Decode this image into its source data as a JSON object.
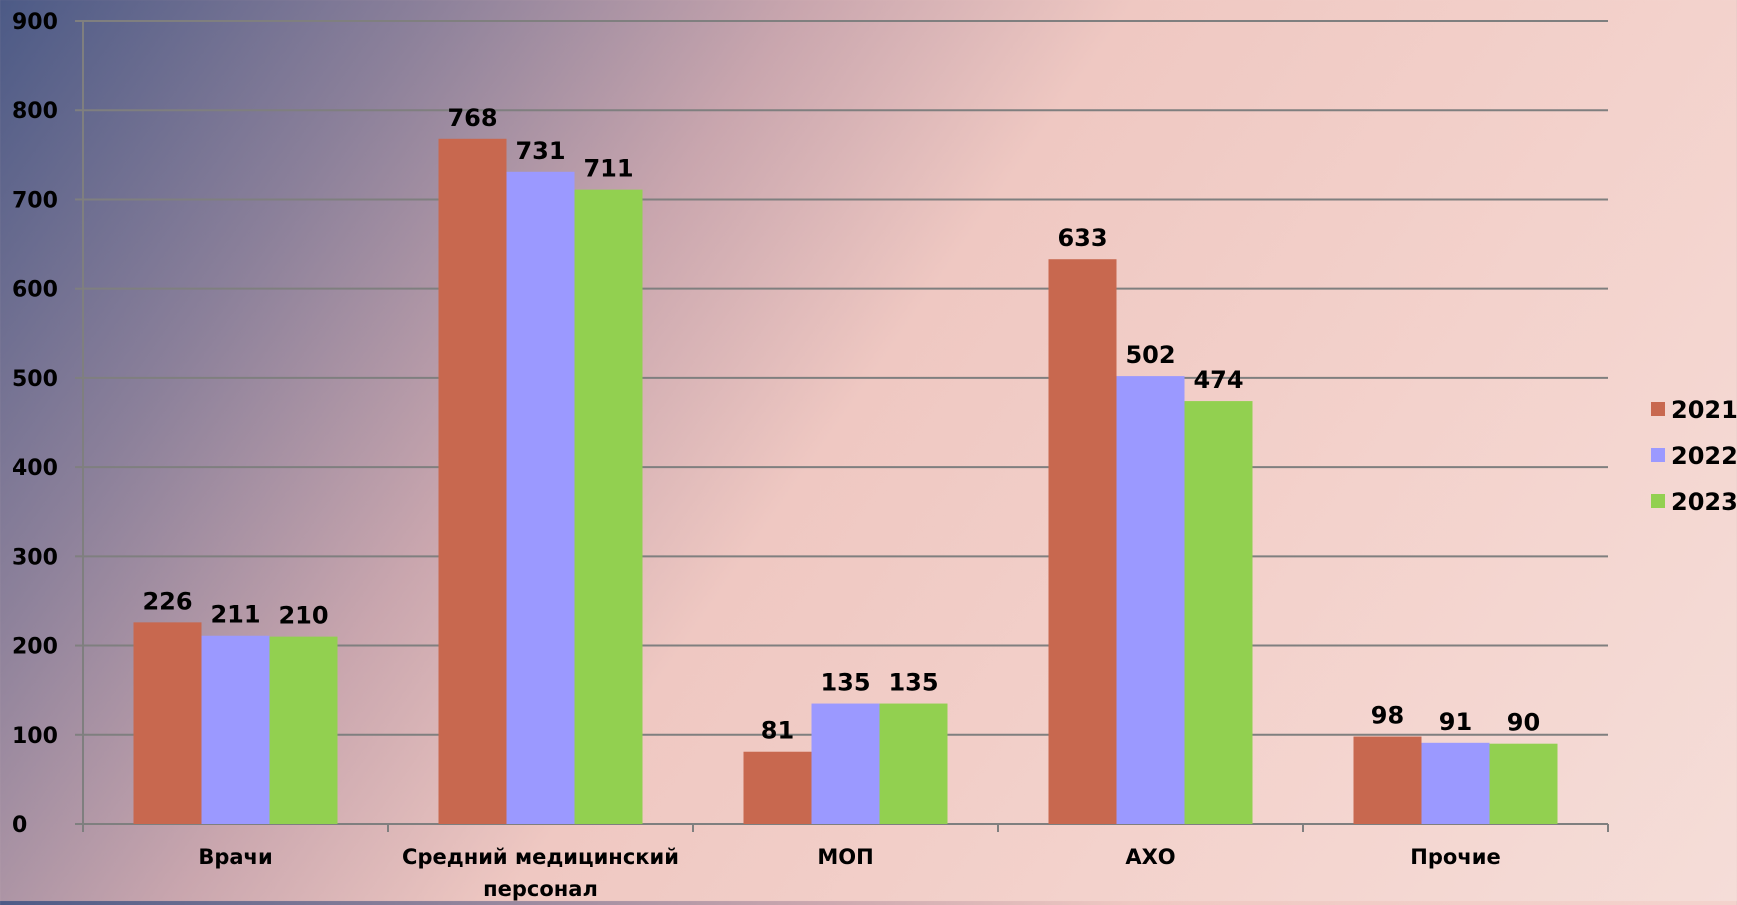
{
  "chart_data": {
    "type": "bar",
    "categories": [
      "Врачи",
      "Средний медицинский персонал",
      "МОП",
      "АХО",
      "Прочие"
    ],
    "category_lines": [
      [
        "Врачи"
      ],
      [
        "Средний медицинский",
        "персонал"
      ],
      [
        "МОП"
      ],
      [
        "АХО"
      ],
      [
        "Прочие"
      ]
    ],
    "series": [
      {
        "name": "2021",
        "color": "#c8684f",
        "values": [
          226,
          768,
          81,
          633,
          98
        ]
      },
      {
        "name": "2022",
        "color": "#9b99ff",
        "values": [
          211,
          731,
          135,
          502,
          91
        ]
      },
      {
        "name": "2023",
        "color": "#92d050",
        "values": [
          210,
          711,
          135,
          474,
          90
        ]
      }
    ],
    "ylim": [
      0,
      900
    ],
    "yticks": [
      0,
      100,
      200,
      300,
      400,
      500,
      600,
      700,
      800,
      900
    ],
    "grid": true,
    "grid_color": "#7f7f7f",
    "data_labels": true,
    "legend_position": "right",
    "title": "",
    "xlabel": "",
    "ylabel": ""
  }
}
